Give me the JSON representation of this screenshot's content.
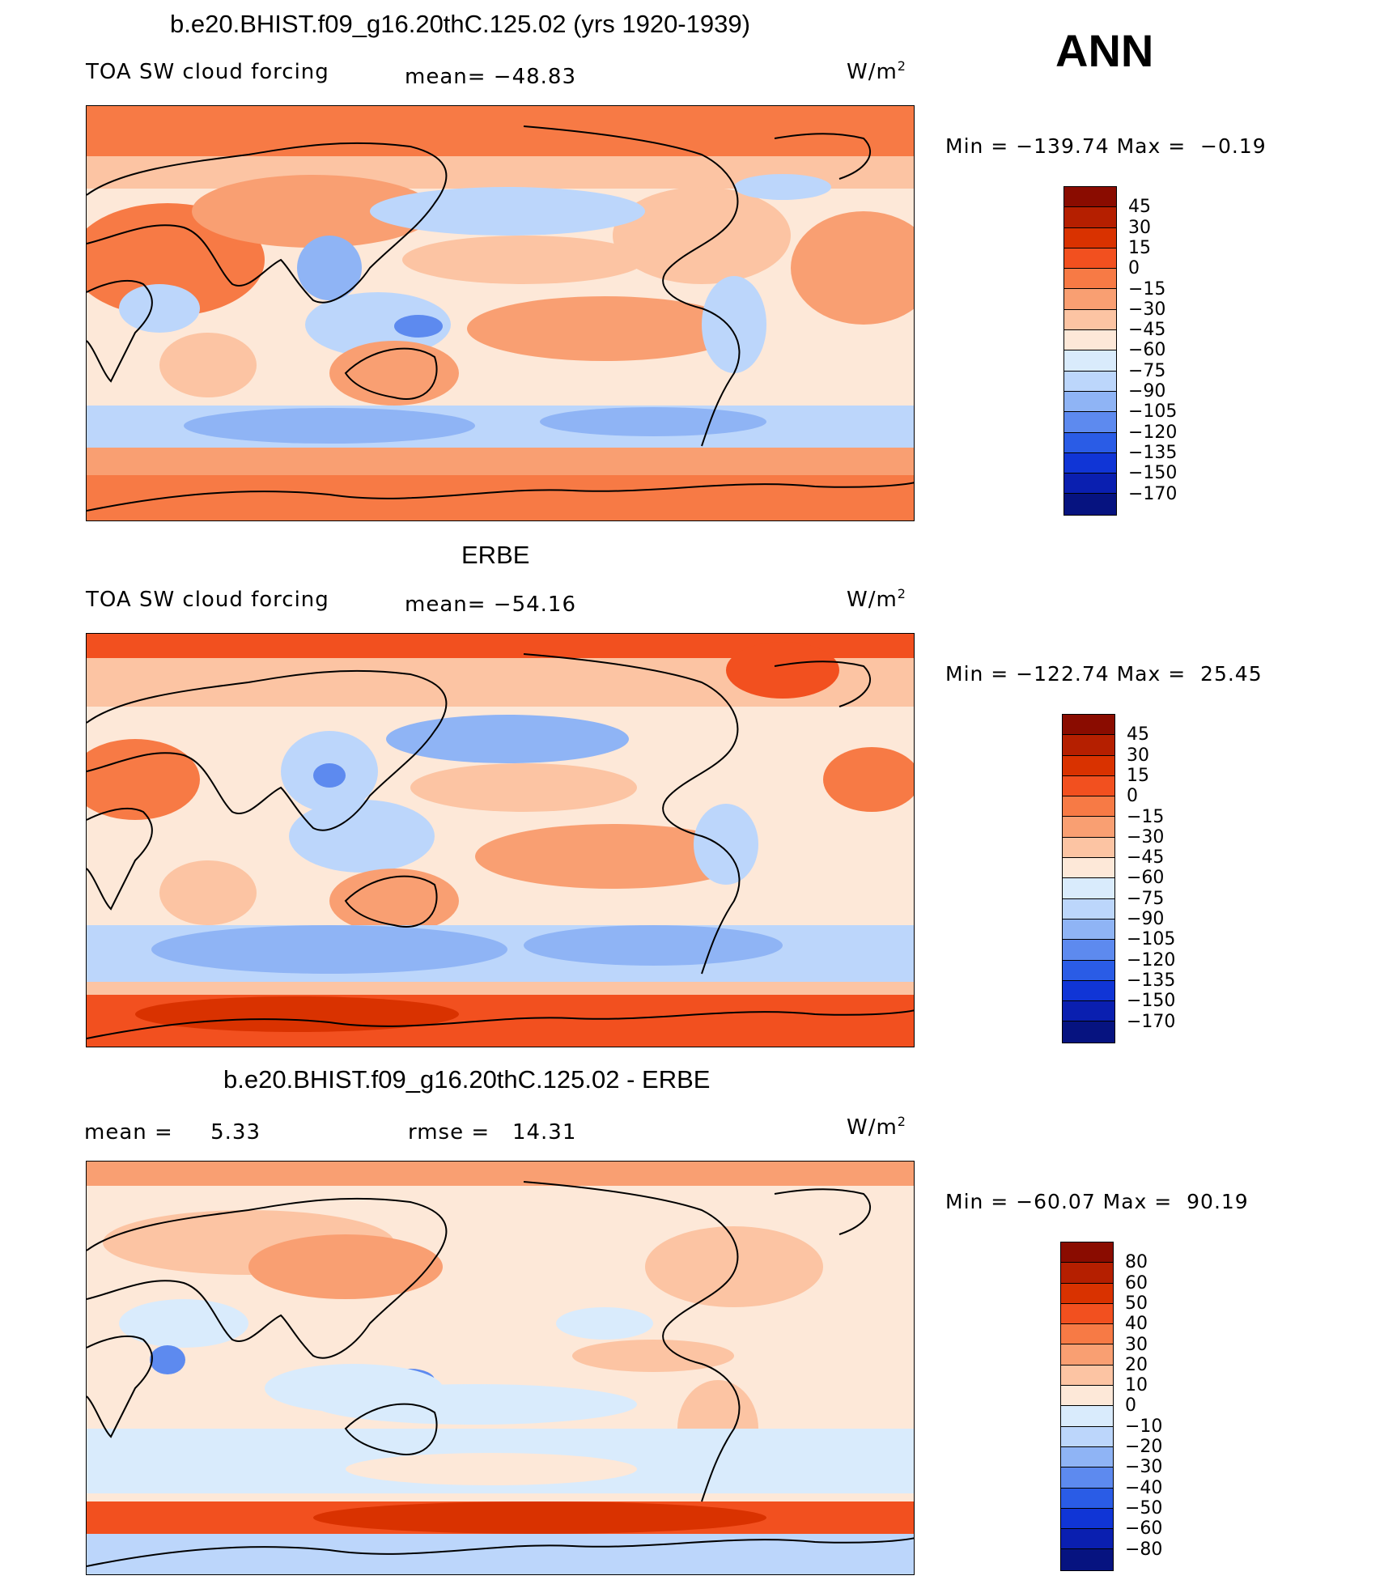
{
  "header": {
    "season": "ANN"
  },
  "panels": [
    {
      "title": "b.e20.BHIST.f09_g16.20thC.125.02 (yrs 1920-1939)",
      "left_label": "TOA SW cloud forcing",
      "center_label": "mean= −48.83",
      "units": "W/m",
      "units_sup": "2",
      "minmax": "Min = −139.74 Max =  −0.19",
      "colorbar_labels": [
        "45",
        "30",
        "15",
        "0",
        "−15",
        "−30",
        "−45",
        "−60",
        "−75",
        "−90",
        "−105",
        "−120",
        "−135",
        "−150",
        "−170"
      ],
      "colorbar_colors": [
        "#8a0c00",
        "#b51f00",
        "#d93200",
        "#f2501f",
        "#f77a45",
        "#f99f72",
        "#fcc4a3",
        "#fde8d8",
        "#d9ebfc",
        "#bcd6fb",
        "#8fb4f5",
        "#5d8aef",
        "#2a5ce6",
        "#1035d6",
        "#0a1fb0",
        "#061380"
      ]
    },
    {
      "title": "ERBE",
      "left_label": "TOA SW cloud forcing",
      "center_label": "mean= −54.16",
      "units": "W/m",
      "units_sup": "2",
      "minmax": "Min = −122.74 Max =  25.45",
      "colorbar_labels": [
        "45",
        "30",
        "15",
        "0",
        "−15",
        "−30",
        "−45",
        "−60",
        "−75",
        "−90",
        "−105",
        "−120",
        "−135",
        "−150",
        "−170"
      ],
      "colorbar_colors": [
        "#8a0c00",
        "#b51f00",
        "#d93200",
        "#f2501f",
        "#f77a45",
        "#f99f72",
        "#fcc4a3",
        "#fde8d8",
        "#d9ebfc",
        "#bcd6fb",
        "#8fb4f5",
        "#5d8aef",
        "#2a5ce6",
        "#1035d6",
        "#0a1fb0",
        "#061380"
      ]
    },
    {
      "title": "b.e20.BHIST.f09_g16.20thC.125.02 - ERBE",
      "left_label": "mean =     5.33",
      "center_label": "rmse =   14.31",
      "units": "W/m",
      "units_sup": "2",
      "minmax": "Min = −60.07 Max =  90.19",
      "colorbar_labels": [
        "80",
        "60",
        "50",
        "40",
        "30",
        "20",
        "10",
        "0",
        "−10",
        "−20",
        "−30",
        "−40",
        "−50",
        "−60",
        "−80"
      ],
      "colorbar_colors": [
        "#8a0c00",
        "#b51f00",
        "#d93200",
        "#f2501f",
        "#f77a45",
        "#f99f72",
        "#fcc4a3",
        "#fde8d8",
        "#d9ebfc",
        "#bcd6fb",
        "#8fb4f5",
        "#5d8aef",
        "#2a5ce6",
        "#1035d6",
        "#0a1fb0",
        "#061380"
      ]
    }
  ]
}
